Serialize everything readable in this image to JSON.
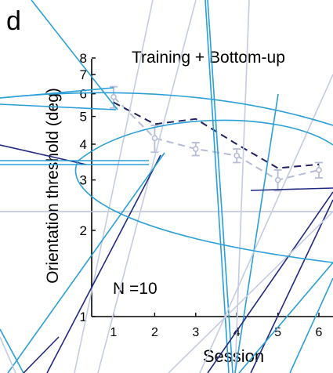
{
  "panel_label": "d",
  "chart_data": {
    "type": "line",
    "title": "Training + Bottom-up",
    "xlabel": "Session",
    "ylabel": "Orientation threshold (deg)",
    "annotation": "N =10",
    "yscale": "log",
    "ylim": [
      1,
      8
    ],
    "xlim": [
      0.5,
      6.3
    ],
    "x_ticks": [
      1,
      2,
      3,
      4,
      5,
      6
    ],
    "x_tick_labels": [
      "1",
      "2",
      "3",
      "4",
      "5",
      "6"
    ],
    "y_ticks": [
      1,
      2,
      3,
      4,
      5,
      6,
      7,
      8
    ],
    "y_tick_labels": [
      "1",
      "2",
      "3",
      "4",
      "5",
      "6",
      "7",
      "8"
    ],
    "grid": false,
    "series": [
      {
        "style": "dashed-with-error-bars",
        "color": "#b6bcd6",
        "x": [
          1,
          2,
          3,
          4,
          5,
          6
        ],
        "y": [
          5.85,
          4.2,
          3.85,
          3.65,
          3.0,
          3.25
        ],
        "err": [
          0.5,
          0.45,
          0.2,
          0.2,
          0.25,
          0.2
        ]
      },
      {
        "style": "dashed",
        "color": "#1f2160",
        "x": [
          1,
          2,
          3,
          4,
          5,
          6
        ],
        "y": [
          5.6,
          4.7,
          4.9,
          4.0,
          3.3,
          3.4
        ]
      }
    ]
  }
}
